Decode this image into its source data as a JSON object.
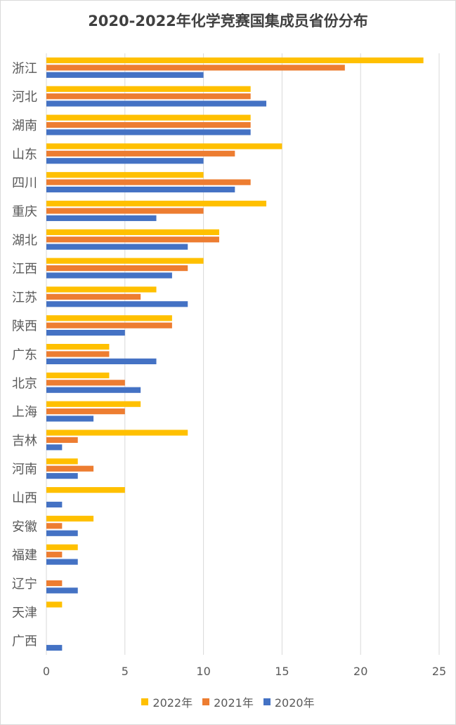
{
  "chart_data": {
    "type": "bar",
    "orientation": "horizontal",
    "title": "2020-2022年化学竞赛国集成员省份分布",
    "categories": [
      "浙江",
      "河北",
      "湖南",
      "山东",
      "四川",
      "重庆",
      "湖北",
      "江西",
      "江苏",
      "陕西",
      "广东",
      "北京",
      "上海",
      "吉林",
      "河南",
      "山西",
      "安徽",
      "福建",
      "辽宁",
      "天津",
      "广西"
    ],
    "series": [
      {
        "name": "2022年",
        "color": "#FFC000",
        "values": [
          24,
          13,
          13,
          15,
          10,
          14,
          11,
          10,
          7,
          8,
          4,
          4,
          6,
          9,
          2,
          5,
          3,
          2,
          0,
          1,
          0
        ]
      },
      {
        "name": "2021年",
        "color": "#ED7D31",
        "values": [
          19,
          13,
          13,
          12,
          13,
          10,
          11,
          9,
          6,
          8,
          4,
          5,
          5,
          2,
          3,
          0,
          1,
          1,
          1,
          0,
          0
        ]
      },
      {
        "name": "2020年",
        "color": "#4472C4",
        "values": [
          10,
          14,
          13,
          10,
          12,
          7,
          9,
          8,
          9,
          5,
          7,
          6,
          3,
          1,
          2,
          1,
          2,
          2,
          2,
          0,
          1
        ]
      }
    ],
    "xlim": [
      0,
      25
    ],
    "xticks": [
      0,
      5,
      10,
      15,
      20,
      25
    ],
    "grid": true,
    "legend_position": "bottom"
  }
}
